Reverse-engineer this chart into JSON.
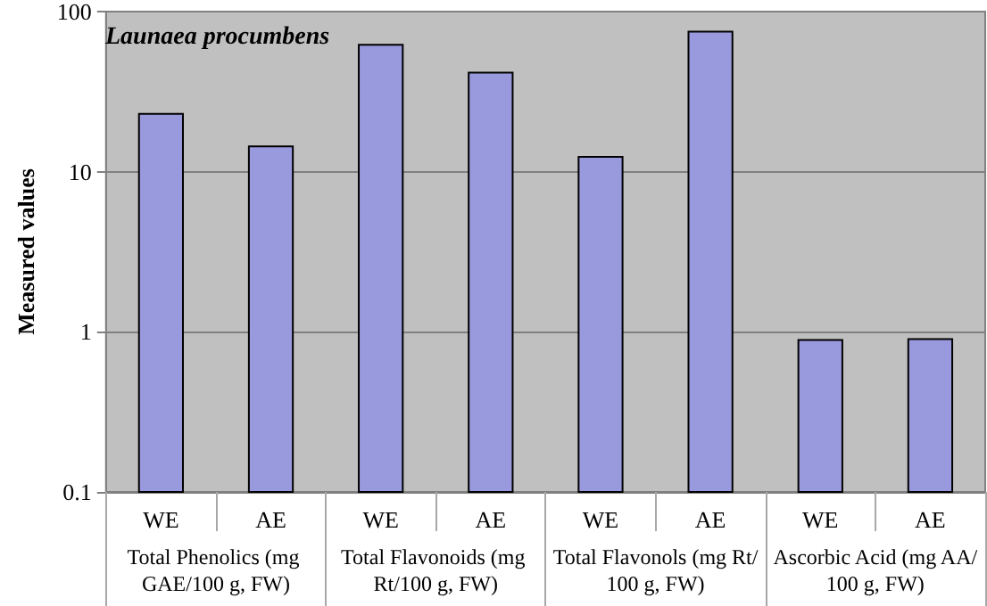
{
  "chart_data": {
    "type": "bar",
    "title": "Launaea procumbens",
    "ylabel": "Measured values",
    "categories": [
      "WE",
      "AE",
      "WE",
      "AE",
      "WE",
      "AE",
      "WE",
      "AE"
    ],
    "annotations": [
      "Total Phenolics (mg GAE/100 g, FW)",
      "Total Flavonoids (mg Rt/100 g, FW)",
      "Total Flavonols (mg Rt/100 g, FW)",
      "Ascorbic Acid (mg AA/100 g, FW)"
    ],
    "series": [
      {
        "color": "#9999dd",
        "values": [
          23,
          14.4,
          62,
          41.5,
          12.4,
          75,
          0.89,
          0.9
        ]
      }
    ],
    "log": true,
    "ylim": [
      0.1,
      100
    ],
    "yticks": [
      0.1,
      1,
      10,
      100
    ],
    "grid": "y"
  }
}
